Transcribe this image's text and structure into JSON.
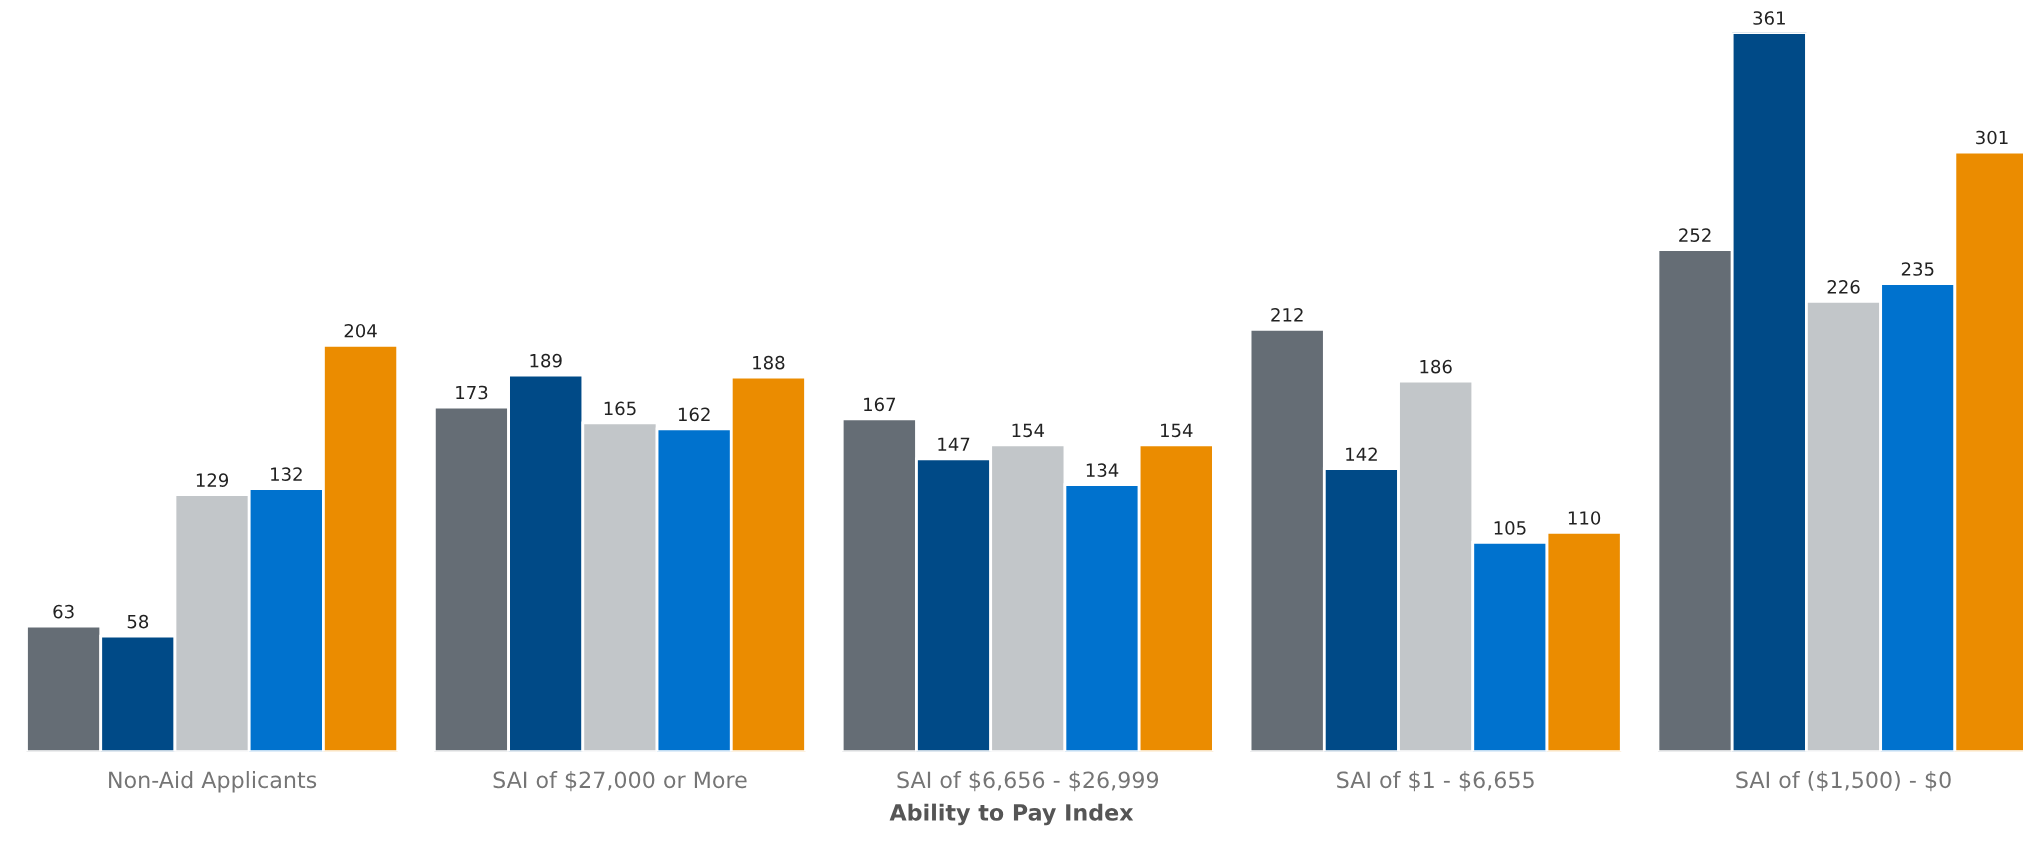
{
  "chart_data": {
    "type": "bar",
    "xlabel": "Ability to Pay Index",
    "categories": [
      "Non-Aid Applicants",
      "SAI of $27,000 or More",
      "SAI of $6,656 - $26,999",
      "SAI of $1 - $6,655",
      "SAI of ($1,500) - $0"
    ],
    "series": [
      {
        "color": "#656d75",
        "values": [
          63,
          173,
          167,
          212,
          252
        ]
      },
      {
        "color": "#004a87",
        "values": [
          58,
          189,
          147,
          142,
          361
        ]
      },
      {
        "color": "#c2c6c9",
        "values": [
          129,
          165,
          154,
          186,
          226
        ]
      },
      {
        "color": "#0072ce",
        "values": [
          132,
          162,
          134,
          105,
          235
        ]
      },
      {
        "color": "#eb8c00",
        "values": [
          204,
          188,
          154,
          110,
          301
        ]
      }
    ],
    "data_labels": true,
    "grid": false,
    "legend": false
  }
}
